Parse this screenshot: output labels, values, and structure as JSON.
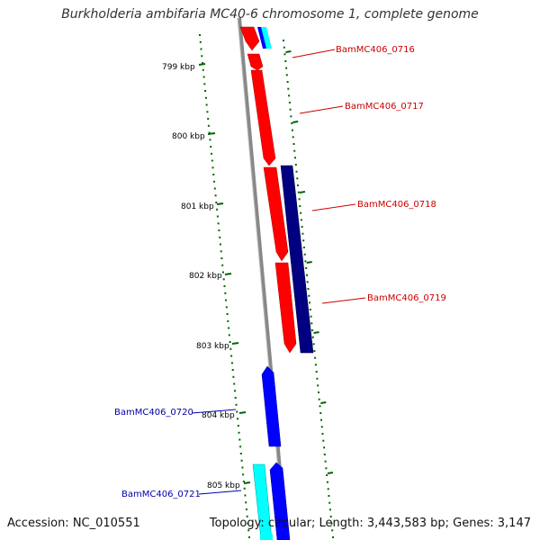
{
  "title": "Burkholderia ambifaria MC40-6 chromosome 1, complete genome",
  "accession": "Accession: NC_010551",
  "summary": "Topology: circular; Length: 3,443,583 bp; Genes: 3,147",
  "scale_labels": [
    "799 kbp",
    "800 kbp",
    "801 kbp",
    "802 kbp",
    "803 kbp",
    "804 kbp",
    "805 kbp"
  ],
  "genes_forward": [
    {
      "label": "BamMC406_0716",
      "color": "#ff0000"
    },
    {
      "label": "BamMC406_0717",
      "color": "#ff0000"
    },
    {
      "label": "BamMC406_0718",
      "color": "#ff0000"
    },
    {
      "label": "BamMC406_0719",
      "color": "#000080"
    }
  ],
  "genes_reverse": [
    {
      "label": "BamMC406_0720",
      "color": "#0000ff"
    },
    {
      "label": "BamMC406_0721",
      "color": "#0000cc"
    }
  ],
  "colors": {
    "backbone": "#888888",
    "forward_label": "#cc0000",
    "reverse_label": "#0000aa",
    "dots": "#006600",
    "cyan": "#00ffff",
    "red": "#ff0000",
    "navy": "#000080",
    "blue": "#0000ff"
  }
}
